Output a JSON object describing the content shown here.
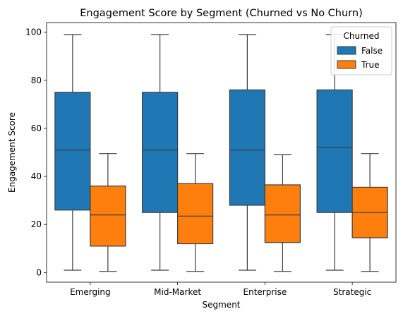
{
  "chart_data": {
    "type": "boxplot",
    "title": "Engagement Score by Segment (Churned vs No Churn)",
    "xlabel": "Segment",
    "ylabel": "Engagement Score",
    "ylim": [
      -4,
      104
    ],
    "yticks": [
      0,
      20,
      40,
      60,
      80,
      100
    ],
    "categories": [
      "Emerging",
      "Mid-Market",
      "Enterprise",
      "Strategic"
    ],
    "legend": {
      "title": "Churned",
      "position": "top-right"
    },
    "series": [
      {
        "name": "False",
        "color": "#1f77b4",
        "boxes": [
          {
            "whisker_low": 1,
            "q1": 26,
            "median": 51,
            "q3": 75,
            "whisker_high": 99
          },
          {
            "whisker_low": 1,
            "q1": 25,
            "median": 51,
            "q3": 75,
            "whisker_high": 99
          },
          {
            "whisker_low": 1,
            "q1": 28,
            "median": 51,
            "q3": 76,
            "whisker_high": 99
          },
          {
            "whisker_low": 1,
            "q1": 25,
            "median": 52,
            "q3": 76,
            "whisker_high": 99
          }
        ]
      },
      {
        "name": "True",
        "color": "#ff7f0e",
        "boxes": [
          {
            "whisker_low": 0.5,
            "q1": 11,
            "median": 24,
            "q3": 36,
            "whisker_high": 49.5
          },
          {
            "whisker_low": 0.5,
            "q1": 12,
            "median": 23.5,
            "q3": 37,
            "whisker_high": 49.5
          },
          {
            "whisker_low": 0.5,
            "q1": 12.5,
            "median": 24,
            "q3": 36.5,
            "whisker_high": 49
          },
          {
            "whisker_low": 0.5,
            "q1": 14.5,
            "median": 25,
            "q3": 35.5,
            "whisker_high": 49.5
          }
        ]
      }
    ]
  }
}
